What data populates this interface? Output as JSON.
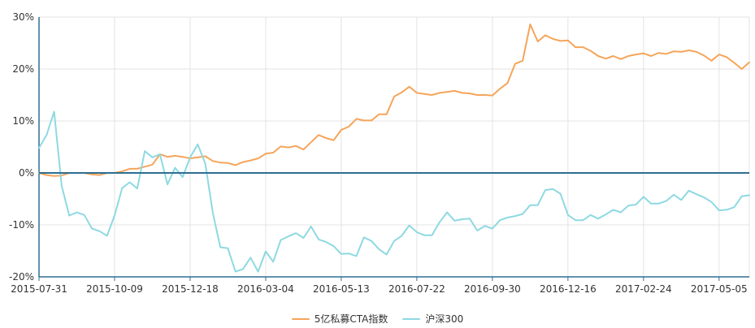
{
  "chart_data": {
    "type": "line",
    "title": "",
    "xlabel": "",
    "ylabel": "",
    "y_unit": "%",
    "ylim": [
      -20,
      30
    ],
    "y_ticks": [
      -20,
      -10,
      0,
      10,
      20,
      30
    ],
    "x_tick_labels": [
      "2015-07-31",
      "2015-10-09",
      "2015-12-18",
      "2016-03-04",
      "2016-05-13",
      "2016-07-22",
      "2016-09-30",
      "2016-12-16",
      "2017-02-24",
      "2017-05-05"
    ],
    "x_tick_index": [
      0,
      10,
      20,
      30,
      40,
      50,
      60,
      70,
      80,
      90
    ],
    "x_count": 95,
    "grid": true,
    "legend_position": "bottom-center",
    "series": [
      {
        "name": "5亿私募CTA指数",
        "color": "#f5a55b",
        "values": [
          0,
          -0.4,
          -0.6,
          -0.5,
          0,
          0,
          0,
          -0.3,
          -0.4,
          0,
          0,
          0.3,
          0.8,
          0.8,
          1.2,
          1.6,
          3.6,
          3.1,
          3.3,
          3.1,
          2.8,
          3.0,
          3.2,
          2.3,
          2.0,
          1.9,
          1.5,
          2.1,
          2.4,
          2.8,
          3.7,
          3.9,
          5.1,
          4.9,
          5.2,
          4.5,
          5.9,
          7.3,
          6.7,
          6.3,
          8.3,
          8.9,
          10.4,
          10.1,
          10.1,
          11.3,
          11.3,
          14.7,
          15.5,
          16.6,
          15.4,
          15.2,
          15.0,
          15.4,
          15.6,
          15.8,
          15.4,
          15.3,
          15.0,
          15.0,
          14.9,
          16.2,
          17.3,
          21.0,
          21.6,
          28.6,
          25.3,
          26.5,
          25.8,
          25.4,
          25.5,
          24.2,
          24.2,
          23.5,
          22.5,
          22.0,
          22.5,
          21.9,
          22.5,
          22.8,
          23.0,
          22.5,
          23.1,
          22.9,
          23.4,
          23.3,
          23.6,
          23.3,
          22.6,
          21.6,
          22.8,
          22.3,
          21.2,
          20.0,
          21.3
        ]
      },
      {
        "name": "沪深300",
        "color": "#8ed9e2",
        "values": [
          4.8,
          7.3,
          11.8,
          -2.5,
          -8.2,
          -7.6,
          -8.1,
          -10.7,
          -11.2,
          -12.1,
          -8.2,
          -2.9,
          -1.8,
          -3.0,
          4.2,
          3.0,
          3.6,
          -2.2,
          1.0,
          -0.8,
          3.0,
          5.5,
          1.8,
          -7.7,
          -14.3,
          -14.5,
          -19.0,
          -18.5,
          -16.3,
          -19.0,
          -15.1,
          -17.1,
          -12.9,
          -12.2,
          -11.6,
          -12.5,
          -10.3,
          -12.8,
          -13.3,
          -14.1,
          -15.6,
          -15.5,
          -16.0,
          -12.4,
          -13.1,
          -14.7,
          -15.7,
          -13.1,
          -12.1,
          -10.1,
          -11.4,
          -12.0,
          -12.0,
          -9.5,
          -7.6,
          -9.2,
          -8.9,
          -8.8,
          -11.1,
          -10.2,
          -10.7,
          -9.1,
          -8.6,
          -8.3,
          -7.9,
          -6.2,
          -6.2,
          -3.3,
          -3.1,
          -4.0,
          -8.1,
          -9.1,
          -9.1,
          -8.1,
          -8.8,
          -8.0,
          -7.1,
          -7.6,
          -6.3,
          -6.1,
          -4.6,
          -5.9,
          -5.9,
          -5.4,
          -4.2,
          -5.2,
          -3.4,
          -4.1,
          -4.7,
          -5.6,
          -7.2,
          -7.1,
          -6.6,
          -4.5,
          -4.3
        ]
      }
    ]
  }
}
